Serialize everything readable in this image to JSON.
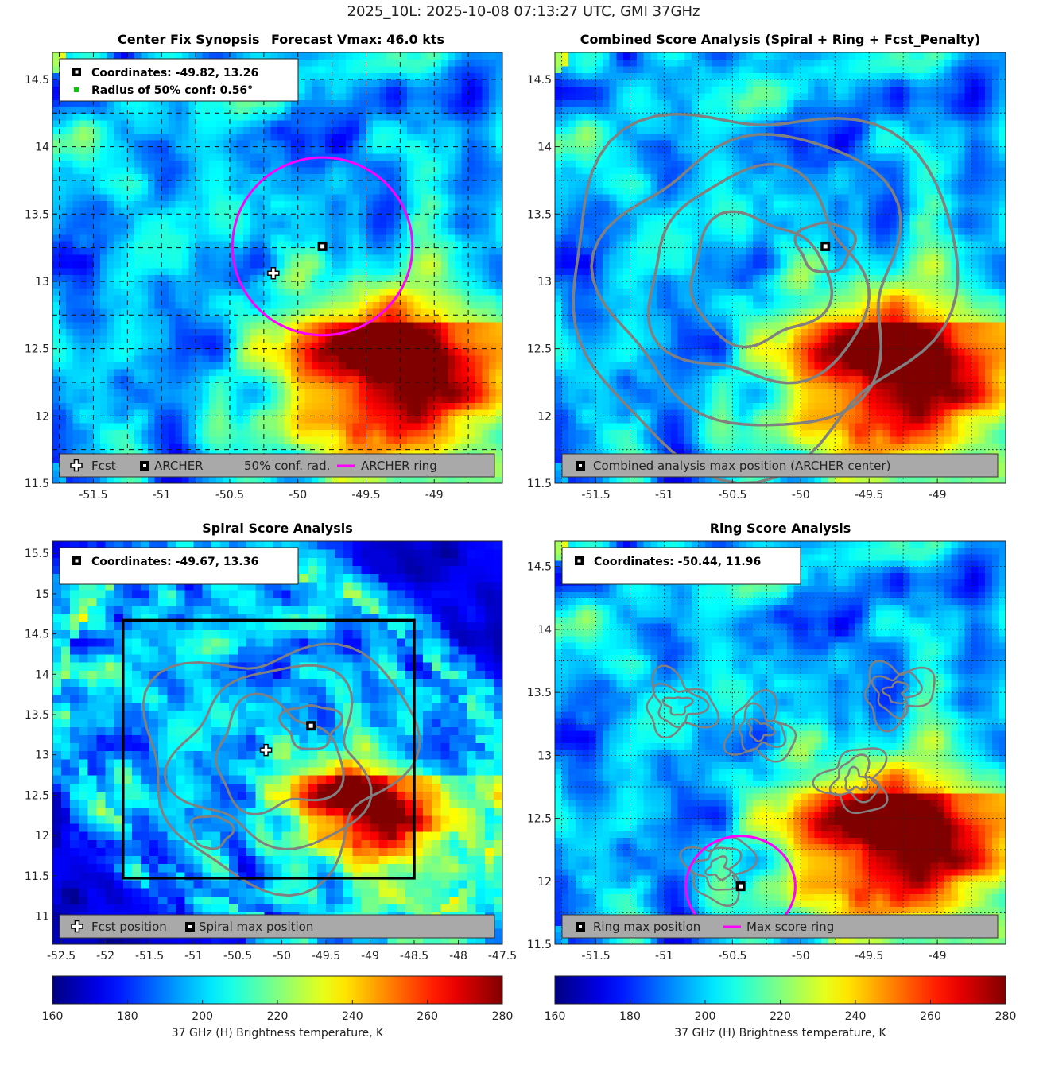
{
  "figure_title": "2025_10L: 2025-10-08 07:13:27 UTC, GMI 37GHz",
  "colors": {
    "ring": "#ff00ff",
    "contour": "#808080",
    "legend_bg": "#a9a9a9",
    "conf_dot": "#00cc00"
  },
  "colorbar_label": "37 GHz (H) Brightness temperature, K",
  "chart_data": [
    {
      "type": "heatmap",
      "panel": "top-left",
      "title_left": "Center Fix Synopsis",
      "title_right": "Forecast Vmax: 46.0 kts",
      "xlim": [
        -51.8,
        -48.5
      ],
      "ylim": [
        11.5,
        14.7
      ],
      "xticks": [
        -51.5,
        -51,
        -50.5,
        -50,
        -49.5,
        -49
      ],
      "yticks": [
        11.5,
        12,
        12.5,
        13,
        13.5,
        14,
        14.5
      ],
      "info": [
        "Coordinates: -49.82, 13.26",
        "Radius of 50% conf: 0.56°"
      ],
      "legend": [
        "Fcst",
        "ARCHER",
        "50% conf. rad.",
        "ARCHER ring"
      ],
      "archer_center": [
        -49.82,
        13.26
      ],
      "fcst_position": [
        -50.18,
        13.06
      ],
      "ring": {
        "center": [
          -49.82,
          13.26
        ],
        "radius": 0.66
      },
      "warm_core": [
        -49.5,
        12.4
      ]
    },
    {
      "type": "heatmap",
      "panel": "top-right",
      "title": "Combined Score Analysis (Spiral + Ring + Fcst_Penalty)",
      "xlim": [
        -51.8,
        -48.5
      ],
      "ylim": [
        11.5,
        14.7
      ],
      "xticks": [
        -51.5,
        -51,
        -50.5,
        -50,
        -49.5,
        -49
      ],
      "yticks": [
        11.5,
        12,
        12.5,
        13,
        13.5,
        14,
        14.5
      ],
      "legend": [
        "Combined analysis max position (ARCHER center)"
      ],
      "max_position": [
        -49.82,
        13.26
      ],
      "contour_radii": [
        0.2,
        0.5,
        0.8,
        1.1,
        1.4
      ],
      "warm_core": [
        -49.5,
        12.4
      ]
    },
    {
      "type": "heatmap",
      "panel": "bottom-left",
      "title": "Spiral Score Analysis",
      "xlim": [
        -52.6,
        -47.5
      ],
      "ylim": [
        10.65,
        15.65
      ],
      "xticks": [
        -52.5,
        -52,
        -51.5,
        -51,
        -50.5,
        -50,
        -49.5,
        -49,
        -48.5,
        -48,
        -47.5
      ],
      "yticks": [
        11,
        11.5,
        12,
        12.5,
        13,
        13.5,
        14,
        14.5,
        15,
        15.5
      ],
      "info": [
        "Coordinates: -49.67, 13.36"
      ],
      "legend": [
        "Fcst position",
        "Spiral max position"
      ],
      "spiral_max": [
        -49.67,
        13.36
      ],
      "fcst_position": [
        -50.18,
        13.06
      ],
      "box": {
        "x": [
          -51.8,
          -48.5
        ],
        "y": [
          11.47,
          14.67
        ]
      },
      "contour_radii": [
        0.3,
        0.7,
        1.1,
        1.5
      ],
      "warm_core": [
        -49.5,
        12.4
      ]
    },
    {
      "type": "heatmap",
      "panel": "bottom-right",
      "title": "Ring Score Analysis",
      "xlim": [
        -51.8,
        -48.5
      ],
      "ylim": [
        11.5,
        14.7
      ],
      "xticks": [
        -51.5,
        -51,
        -50.5,
        -50,
        -49.5,
        -49
      ],
      "yticks": [
        11.5,
        12,
        12.5,
        13,
        13.5,
        14,
        14.5
      ],
      "info": [
        "Coordinates: -50.44, 11.96"
      ],
      "legend": [
        "Ring max position",
        "Max score ring"
      ],
      "ring_max": [
        -50.44,
        11.96
      ],
      "ring": {
        "center": [
          -50.44,
          11.96
        ],
        "radius": 0.4
      },
      "contour_centers": [
        [
          -50.9,
          13.4
        ],
        [
          -50.3,
          13.2
        ],
        [
          -49.6,
          12.8
        ],
        [
          -50.6,
          12.1
        ],
        [
          -49.3,
          13.5
        ]
      ],
      "warm_core": [
        -49.5,
        12.4
      ]
    },
    {
      "type": "colorbar",
      "range": [
        160,
        280
      ],
      "ticks": [
        160,
        180,
        200,
        220,
        240,
        260,
        280
      ],
      "colormap": "jet"
    }
  ]
}
